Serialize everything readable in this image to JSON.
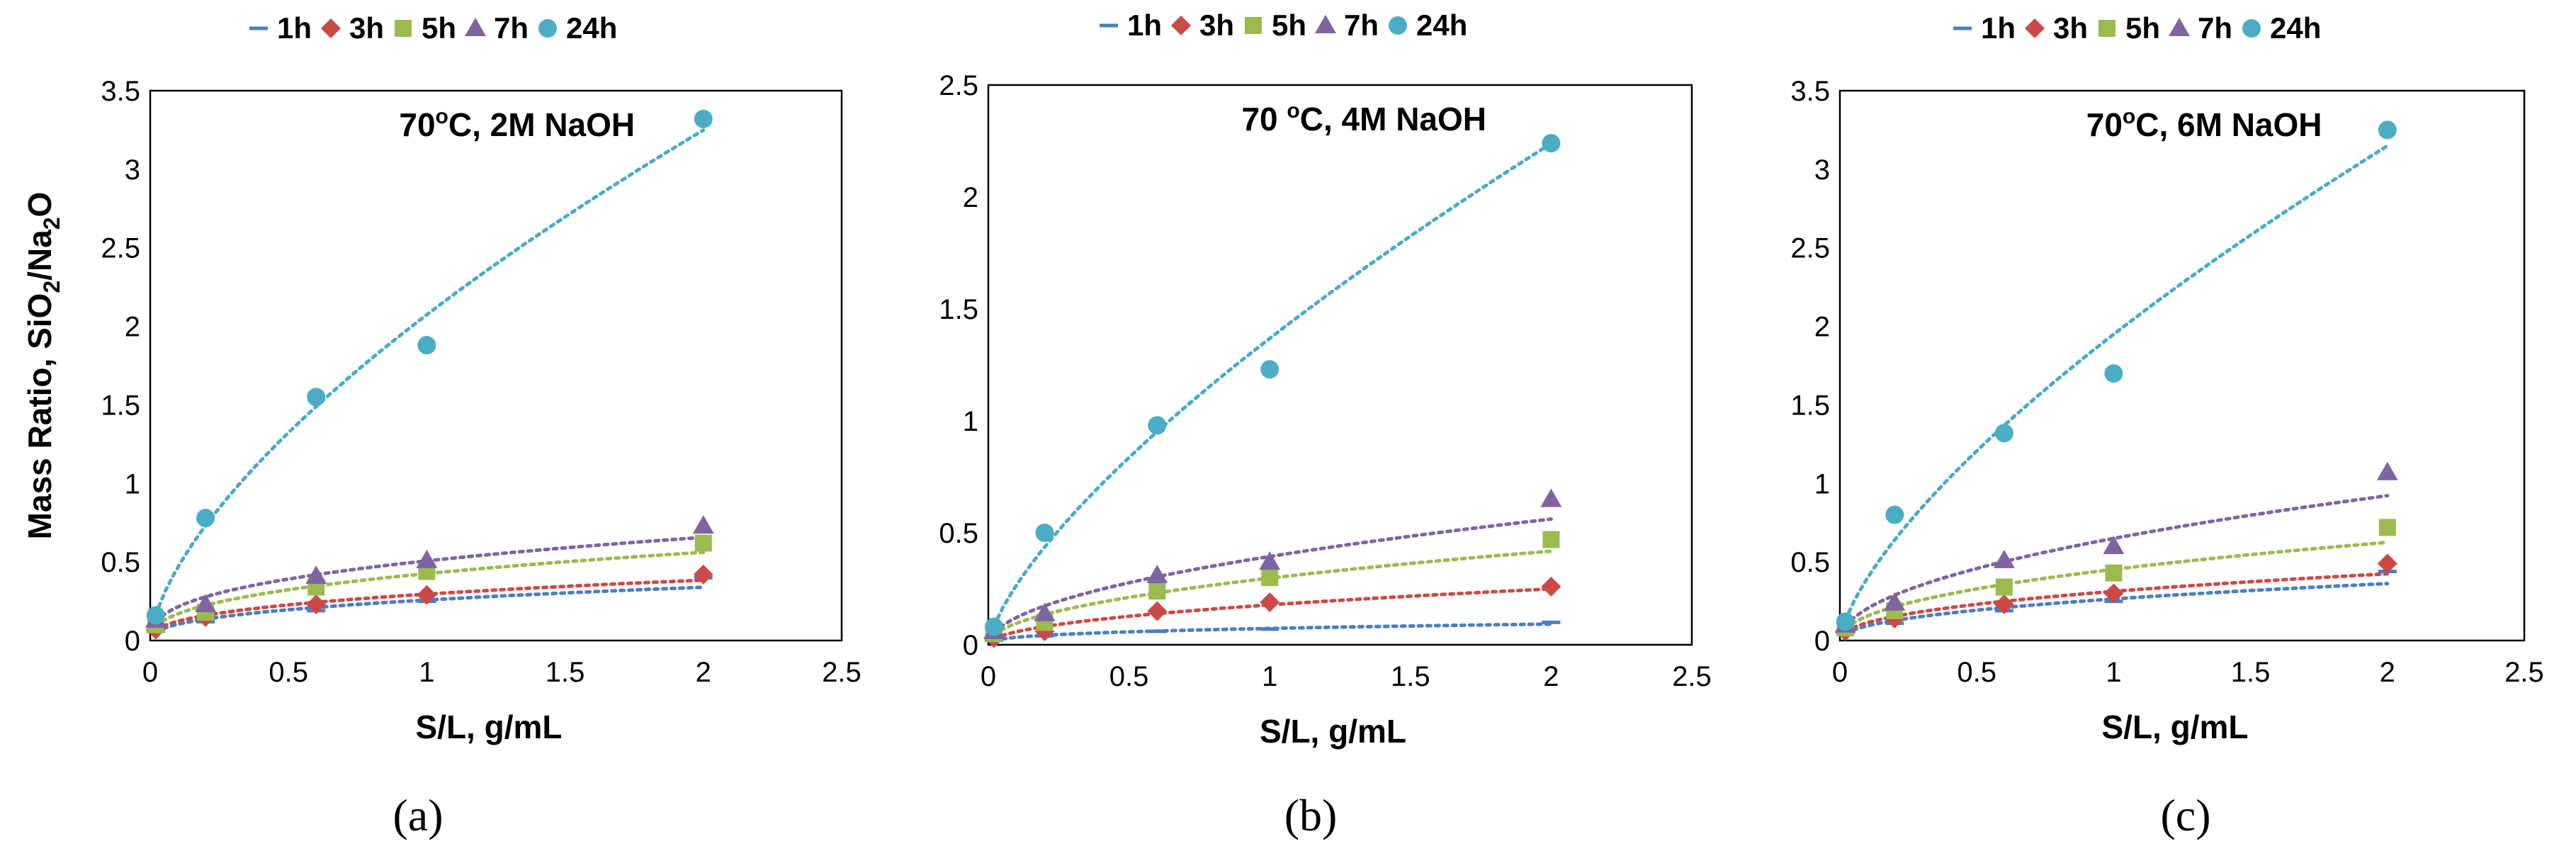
{
  "chart_data": [
    {
      "type": "scatter",
      "panel_label": "(a)",
      "panel_letter": "a",
      "condition": {
        "temp": "70",
        "deg": "o",
        "unit_rest": "C, 2M NaOH",
        "prefix_space": ""
      },
      "xlabel": "S/L, g/mL",
      "ylabel": {
        "base": "Mass Ratio, SiO",
        "sub1": "2",
        "mid": "/Na",
        "sub2": "2",
        "end": "O"
      },
      "xlim": [
        0,
        2.5
      ],
      "ylim": [
        0,
        3.5
      ],
      "xticks": [
        "0",
        "0.5",
        "1",
        "1.5",
        "2",
        "2.5"
      ],
      "yticks": [
        "0",
        "0.5",
        "1",
        "1.5",
        "2",
        "2.5",
        "3",
        "3.5"
      ],
      "x": [
        0.02,
        0.2,
        0.6,
        1.0,
        2.0
      ],
      "series": [
        {
          "name": "1h",
          "values": [
            0.06,
            0.12,
            0.19,
            0.25,
            0.4
          ]
        },
        {
          "name": "3h",
          "values": [
            0.07,
            0.15,
            0.23,
            0.29,
            0.42
          ]
        },
        {
          "name": "5h",
          "values": [
            0.1,
            0.18,
            0.34,
            0.44,
            0.62
          ]
        },
        {
          "name": "7h",
          "values": [
            0.13,
            0.23,
            0.41,
            0.51,
            0.73
          ]
        },
        {
          "name": "24h",
          "values": [
            0.16,
            0.78,
            1.55,
            1.88,
            3.32
          ]
        }
      ]
    },
    {
      "type": "scatter",
      "panel_label": "(b)",
      "panel_letter": "b",
      "condition": {
        "temp": "70",
        "deg": "o",
        "unit_rest": "C, 4M NaOH",
        "prefix_space": " "
      },
      "xlabel": "S/L, g/mL",
      "xlim": [
        0,
        2.5
      ],
      "ylim": [
        0,
        2.5
      ],
      "xticks": [
        "0",
        "0.5",
        "1",
        "1.5",
        "2",
        "2.5"
      ],
      "yticks": [
        "0",
        "0.5",
        "1",
        "1.5",
        "2",
        "2.5"
      ],
      "x": [
        0.02,
        0.2,
        0.6,
        1.0,
        2.0
      ],
      "series": [
        {
          "name": "1h",
          "values": [
            0.02,
            0.04,
            0.06,
            0.07,
            0.1
          ]
        },
        {
          "name": "3h",
          "values": [
            0.03,
            0.06,
            0.15,
            0.19,
            0.26
          ]
        },
        {
          "name": "5h",
          "values": [
            0.05,
            0.1,
            0.24,
            0.3,
            0.47
          ]
        },
        {
          "name": "7h",
          "values": [
            0.06,
            0.14,
            0.31,
            0.37,
            0.65
          ]
        },
        {
          "name": "24h",
          "values": [
            0.08,
            0.5,
            0.98,
            1.23,
            2.24
          ]
        }
      ]
    },
    {
      "type": "scatter",
      "panel_label": "(c)",
      "panel_letter": "c",
      "condition": {
        "temp": "70",
        "deg": "o",
        "unit_rest": "C, 6M NaOH",
        "prefix_space": ""
      },
      "xlabel": "S/L, g/mL",
      "xlim": [
        0,
        2.5
      ],
      "ylim": [
        0,
        3.5
      ],
      "xticks": [
        "0",
        "0.5",
        "1",
        "1.5",
        "2",
        "2.5"
      ],
      "yticks": [
        "0",
        "0.5",
        "1",
        "1.5",
        "2",
        "2.5",
        "3",
        "3.5"
      ],
      "x": [
        0.02,
        0.2,
        0.6,
        1.0,
        2.0
      ],
      "series": [
        {
          "name": "1h",
          "values": [
            0.05,
            0.11,
            0.19,
            0.25,
            0.44
          ]
        },
        {
          "name": "3h",
          "values": [
            0.06,
            0.14,
            0.23,
            0.3,
            0.49
          ]
        },
        {
          "name": "5h",
          "values": [
            0.08,
            0.19,
            0.34,
            0.43,
            0.72
          ]
        },
        {
          "name": "7h",
          "values": [
            0.1,
            0.24,
            0.51,
            0.6,
            1.07
          ]
        },
        {
          "name": "24h",
          "values": [
            0.12,
            0.8,
            1.32,
            1.7,
            3.25
          ]
        }
      ]
    }
  ],
  "series_style": {
    "1h": {
      "color": "#4a7fc1",
      "marker": "dash"
    },
    "3h": {
      "color": "#cc4a45",
      "marker": "diamond"
    },
    "5h": {
      "color": "#9bbb4f",
      "marker": "square"
    },
    "7h": {
      "color": "#8064a2",
      "marker": "triangle"
    },
    "24h": {
      "color": "#4bacc6",
      "marker": "circle"
    }
  }
}
